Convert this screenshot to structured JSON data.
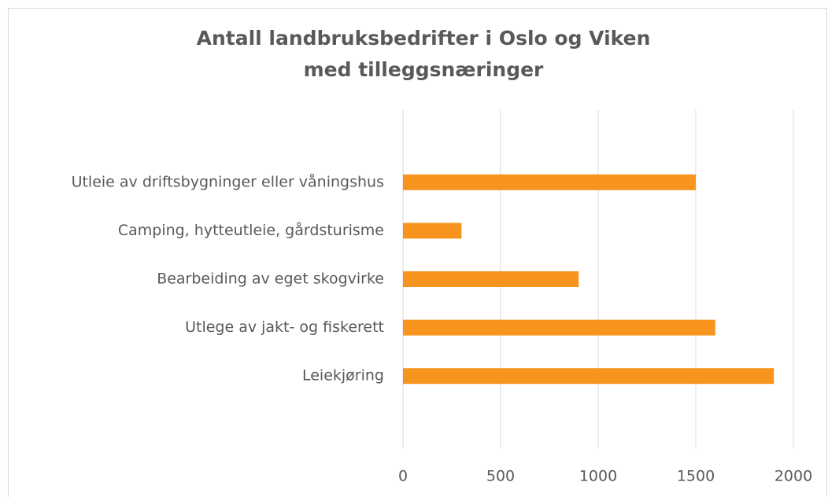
{
  "chart_data": {
    "type": "bar",
    "orientation": "horizontal",
    "title": [
      "Antall landbruksbedrifter i Oslo og Viken",
      "med tilleggsnæringer"
    ],
    "categories": [
      "Utleie av driftsbygninger eller våningshus",
      "Camping, hytteutleie, gårdsturisme",
      "Bearbeiding av eget skogvirke",
      "Utlege av jakt- og fiskerett",
      "Leiekjøring"
    ],
    "values": [
      1500,
      300,
      900,
      1600,
      1900
    ],
    "color": "#f7941d",
    "xlim": [
      0,
      2000
    ],
    "xticks": [
      0,
      500,
      1000,
      1500,
      2000
    ],
    "grid": true
  }
}
